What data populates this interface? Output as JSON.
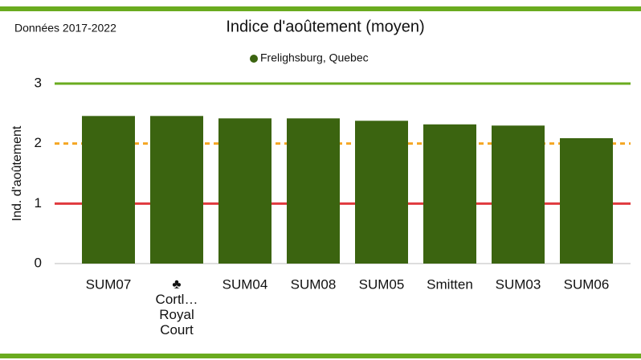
{
  "chart_data": {
    "type": "bar",
    "title": "Indice d'aoûtement (moyen)",
    "subtitle": "Données 2017-2022",
    "y_label": "Ind. d'aoûtement",
    "categories": [
      "SUM07",
      "♣ Cortl… Royal Court",
      "SUM04",
      "SUM08",
      "SUM05",
      "Smitten",
      "SUM03",
      "SUM06"
    ],
    "series": [
      {
        "name": "Frelighsburg, Quebec",
        "color": "#3b6410",
        "values": [
          2.46,
          2.46,
          2.42,
          2.42,
          2.38,
          2.32,
          2.3,
          2.09
        ]
      }
    ],
    "ylim": [
      0,
      3
    ],
    "yticks": [
      0,
      1,
      2,
      3
    ],
    "threshold_lines": [
      {
        "value": 1,
        "color": "#e0393e",
        "style": "solid"
      },
      {
        "value": 2,
        "color": "#f5a623",
        "style": "dashed"
      },
      {
        "value": 3,
        "color": "#6aab1f",
        "style": "solid"
      }
    ],
    "legend": "top"
  }
}
